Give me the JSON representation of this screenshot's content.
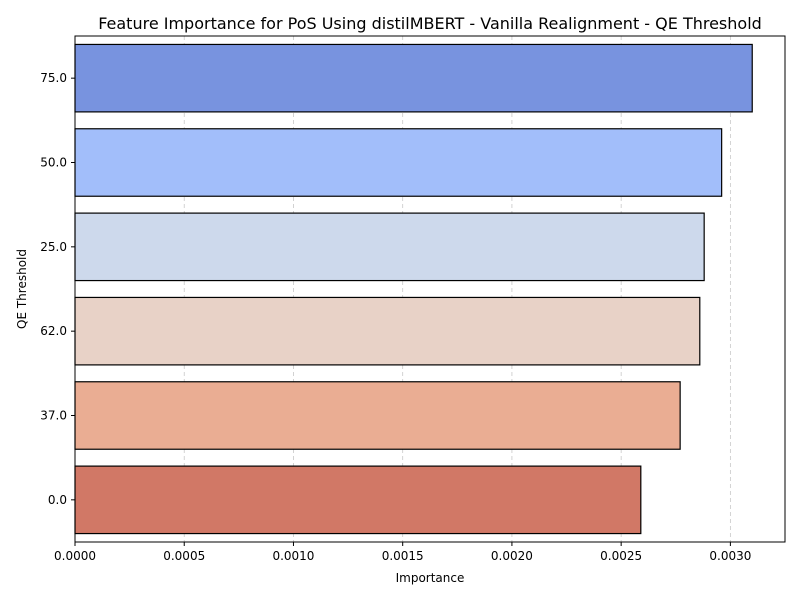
{
  "chart_data": {
    "type": "bar",
    "orientation": "horizontal",
    "title": "Feature Importance for PoS Using distilMBERT - Vanilla Realignment - QE Threshold",
    "xlabel": "Importance",
    "ylabel": "QE Threshold",
    "categories": [
      "75.0",
      "50.0",
      "25.0",
      "62.0",
      "37.0",
      "0.0"
    ],
    "values": [
      0.0031,
      0.00296,
      0.00288,
      0.00286,
      0.00277,
      0.00259
    ],
    "colors": [
      "#7893df",
      "#a2befa",
      "#cdd9ec",
      "#e8d2c7",
      "#eaad93",
      "#d17866"
    ],
    "xlim": [
      0,
      0.00325
    ],
    "xticks": [
      "0.0000",
      "0.0005",
      "0.0010",
      "0.0015",
      "0.0020",
      "0.0025",
      "0.0030"
    ],
    "grid": "x-dashed"
  }
}
